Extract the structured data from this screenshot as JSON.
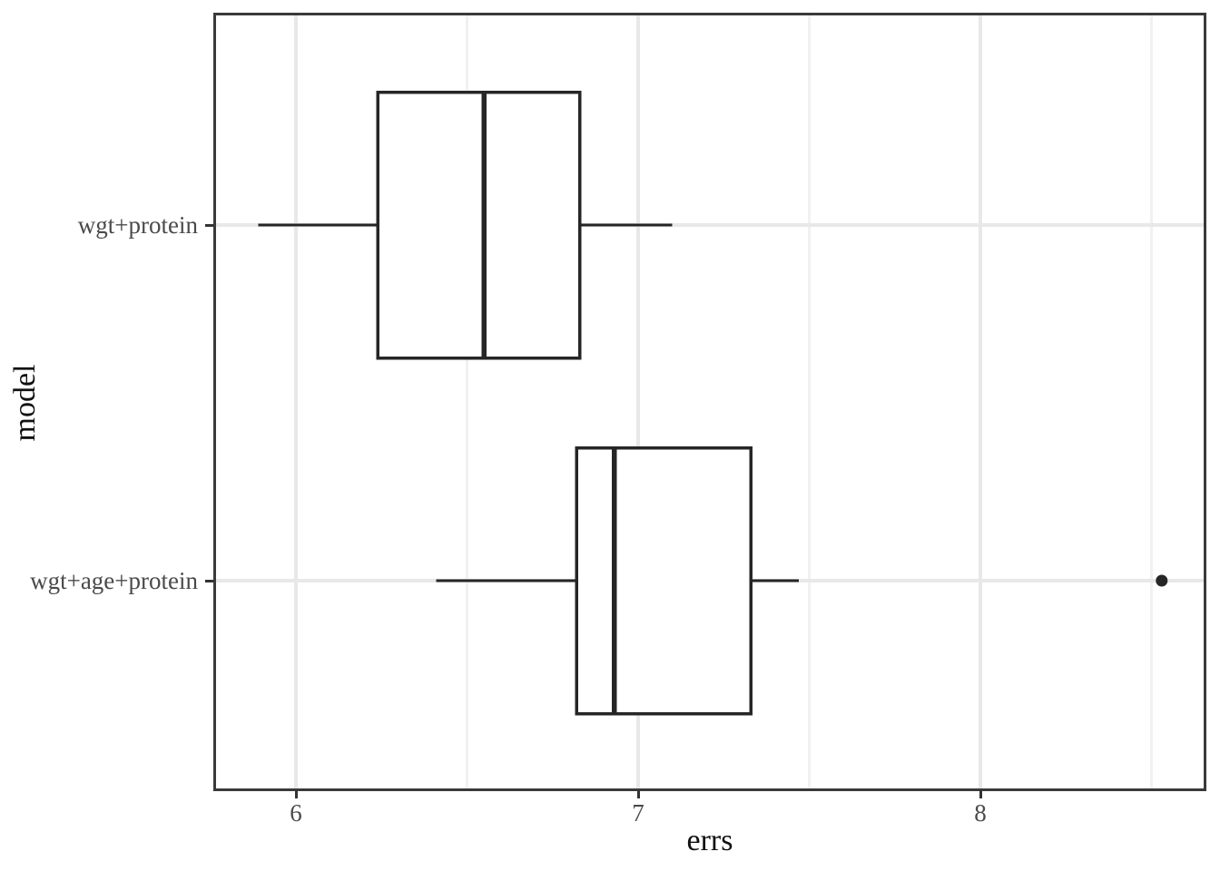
{
  "figure": {
    "background": "#ffffff"
  },
  "chart_data": {
    "type": "boxplot",
    "orientation": "horizontal",
    "title": "",
    "xlabel": "errs",
    "ylabel": "model",
    "x_ticks": [
      6,
      7,
      8
    ],
    "x_minor_ticks": [
      6.5,
      7.5,
      8.5
    ],
    "xlim": [
      5.76,
      8.66
    ],
    "grid": "major-and-minor-vertical, major-horizontal-per-category",
    "legend": "none",
    "categories": [
      "wgt+protein",
      "wgt+age+protein"
    ],
    "series": [
      {
        "name": "wgt+protein",
        "whisker_low": 5.89,
        "q1": 6.24,
        "median": 6.55,
        "q3": 6.83,
        "whisker_high": 7.1,
        "outliers": []
      },
      {
        "name": "wgt+age+protein",
        "whisker_low": 6.41,
        "q1": 6.82,
        "median": 6.93,
        "q3": 7.33,
        "whisker_high": 7.47,
        "outliers": [
          8.53
        ]
      }
    ],
    "style": {
      "panel_bg": "#ffffff",
      "panel_border": "#3a3a3a",
      "grid_major": "#e8e8e8",
      "grid_minor": "#f1f1f1",
      "box_fill": "#ffffff",
      "box_stroke": "#262626",
      "outlier_color": "#262626",
      "axis_text_color": "#4a4a4a",
      "axis_title_color": "#111111",
      "tick_mark_color": "#333333"
    }
  }
}
